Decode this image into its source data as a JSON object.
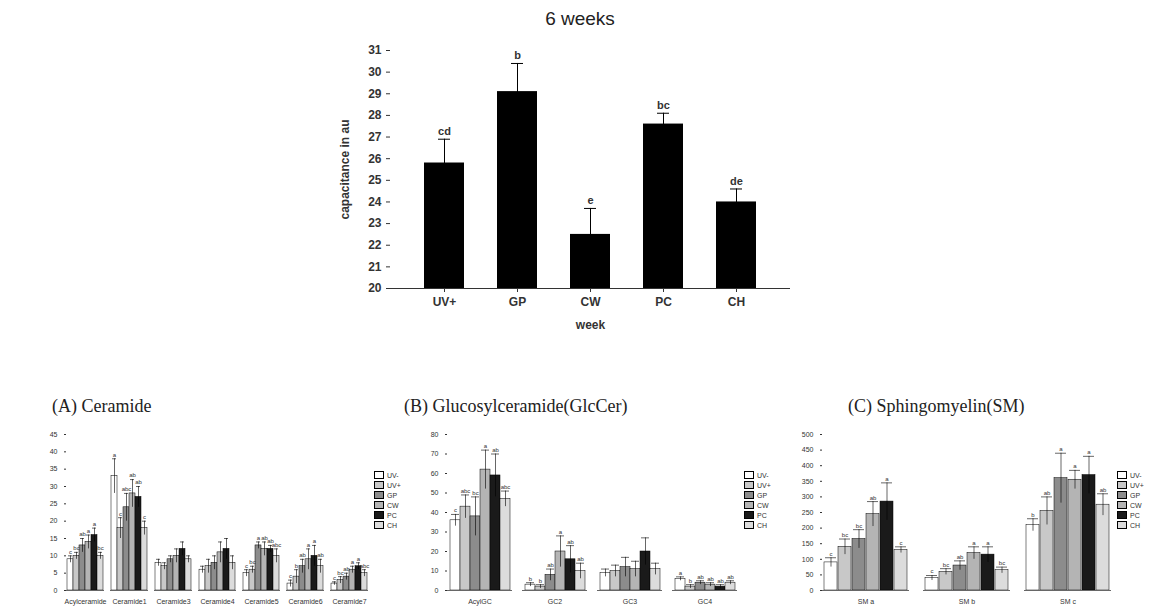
{
  "chart_data": [
    {
      "type": "bar",
      "title": "6 weeks",
      "x_label": "week",
      "y_label": "capacitance in au",
      "categories": [
        "UV+",
        "GP",
        "CW",
        "PC",
        "CH"
      ],
      "values": [
        25.8,
        29.1,
        22.5,
        27.6,
        24.0
      ],
      "errors": [
        1.1,
        1.3,
        1.2,
        0.5,
        0.6
      ],
      "annotations": [
        "cd",
        "b",
        "e",
        "bc",
        "de"
      ],
      "color": "#000000",
      "ylim": [
        20,
        31
      ],
      "yticks": [
        20,
        21,
        22,
        23,
        24,
        25,
        26,
        27,
        28,
        29,
        30,
        31
      ],
      "grid": false
    },
    {
      "type": "bar",
      "title": "(A) Ceramide",
      "categories": [
        "Acylceramide",
        "Ceramide1",
        "Ceramide3",
        "Ceramide4",
        "Ceramide5",
        "Ceramide6",
        "Ceramide7"
      ],
      "series": [
        {
          "name": "UV-",
          "color": "#ffffff",
          "values": [
            9,
            33,
            8,
            6,
            5,
            2,
            2
          ],
          "errors": [
            1,
            5,
            1,
            1,
            1,
            1,
            0.5
          ],
          "annotations": [
            "c",
            "a",
            null,
            null,
            "c",
            "c",
            "c"
          ]
        },
        {
          "name": "UV+",
          "color": "#c8c8c8",
          "values": [
            10,
            18,
            7,
            7,
            6,
            4,
            3
          ],
          "errors": [
            1,
            3,
            1,
            2,
            1,
            2,
            1
          ],
          "annotations": [
            "bc",
            "c",
            null,
            null,
            "bc",
            "b",
            "bc"
          ]
        },
        {
          "name": "GP",
          "color": "#8c8c8c",
          "values": [
            13,
            24,
            9,
            8,
            13,
            7,
            4
          ],
          "errors": [
            2,
            4,
            1,
            2,
            1,
            2,
            1
          ],
          "annotations": [
            "ab",
            "abc",
            null,
            null,
            "a",
            "ab",
            "ab"
          ]
        },
        {
          "name": "CW",
          "color": "#b4b4b4",
          "values": [
            14,
            28,
            10,
            11,
            12,
            9,
            6
          ],
          "errors": [
            2,
            4,
            2,
            3,
            2,
            3,
            1
          ],
          "annotations": [
            "a",
            "ab",
            null,
            null,
            "ab",
            "a",
            "a"
          ]
        },
        {
          "name": "PC",
          "color": "#1a1a1a",
          "values": [
            16,
            27,
            12,
            12,
            12,
            10,
            7
          ],
          "errors": [
            2,
            3,
            2,
            3,
            1,
            3,
            1
          ],
          "annotations": [
            "a",
            "ab",
            null,
            null,
            "ab",
            "a",
            "a"
          ]
        },
        {
          "name": "CH",
          "color": "#dcdcdc",
          "values": [
            10,
            18,
            9,
            8,
            10,
            7,
            5
          ],
          "errors": [
            1,
            2,
            1,
            2,
            2,
            2,
            1
          ],
          "annotations": [
            "bc",
            "c",
            null,
            null,
            "abc",
            "ab",
            "abc"
          ]
        }
      ],
      "ylim": [
        0,
        45
      ],
      "yticks": [
        0,
        5,
        10,
        15,
        20,
        25,
        30,
        35,
        40,
        45
      ],
      "grid": false,
      "legend": "right"
    },
    {
      "type": "bar",
      "title": "(B) Glucosylceramide(GlcCer)",
      "categories": [
        "AcylGC",
        "GC2",
        "GC3",
        "GC4"
      ],
      "series": [
        {
          "name": "UV-",
          "color": "#ffffff",
          "values": [
            36,
            3,
            9,
            6
          ],
          "errors": [
            3,
            1,
            2,
            1
          ],
          "annotations": [
            "c",
            "b",
            null,
            "a"
          ]
        },
        {
          "name": "UV+",
          "color": "#c8c8c8",
          "values": [
            43,
            2,
            10,
            2
          ],
          "errors": [
            6,
            1,
            3,
            1
          ],
          "annotations": [
            "abc",
            "b",
            null,
            "b"
          ]
        },
        {
          "name": "GP",
          "color": "#8c8c8c",
          "values": [
            38,
            8,
            12,
            4
          ],
          "errors": [
            10,
            3,
            5,
            1
          ],
          "annotations": [
            "bc",
            "ab",
            null,
            "ab"
          ]
        },
        {
          "name": "CW",
          "color": "#b4b4b4",
          "values": [
            62,
            20,
            11,
            3
          ],
          "errors": [
            10,
            8,
            4,
            1
          ],
          "annotations": [
            "a",
            "a",
            null,
            "ab"
          ]
        },
        {
          "name": "PC",
          "color": "#1a1a1a",
          "values": [
            59,
            16,
            20,
            2
          ],
          "errors": [
            11,
            7,
            7,
            1
          ],
          "annotations": [
            "ab",
            "ab",
            null,
            "ab"
          ]
        },
        {
          "name": "CH",
          "color": "#dcdcdc",
          "values": [
            47,
            10,
            11,
            4
          ],
          "errors": [
            4,
            4,
            3,
            1
          ],
          "annotations": [
            "abc",
            "ab",
            null,
            "ab"
          ]
        }
      ],
      "ylim": [
        0,
        80
      ],
      "yticks": [
        0,
        10,
        20,
        30,
        40,
        50,
        60,
        70,
        80
      ],
      "grid": false,
      "legend": "right"
    },
    {
      "type": "bar",
      "title": "(C) Sphingomyelin(SM)",
      "categories": [
        "SM a",
        "SM b",
        "SM c"
      ],
      "series": [
        {
          "name": "UV-",
          "color": "#ffffff",
          "values": [
            90,
            40,
            210
          ],
          "errors": [
            15,
            8,
            20
          ],
          "annotations": [
            "c",
            "c",
            "b"
          ]
        },
        {
          "name": "UV+",
          "color": "#c8c8c8",
          "values": [
            140,
            60,
            255
          ],
          "errors": [
            25,
            10,
            45
          ],
          "annotations": [
            "bc",
            "bc",
            "ab"
          ]
        },
        {
          "name": "GP",
          "color": "#8c8c8c",
          "values": [
            165,
            80,
            360
          ],
          "errors": [
            30,
            15,
            80
          ],
          "annotations": [
            "bc",
            "ab",
            "a"
          ]
        },
        {
          "name": "CW",
          "color": "#b4b4b4",
          "values": [
            245,
            120,
            355
          ],
          "errors": [
            40,
            20,
            30
          ],
          "annotations": [
            "ab",
            "a",
            "a"
          ]
        },
        {
          "name": "PC",
          "color": "#1a1a1a",
          "values": [
            285,
            115,
            370
          ],
          "errors": [
            60,
            25,
            60
          ],
          "annotations": [
            "a",
            "a",
            "a"
          ]
        },
        {
          "name": "CH",
          "color": "#dcdcdc",
          "values": [
            130,
            65,
            275
          ],
          "errors": [
            10,
            10,
            35
          ],
          "annotations": [
            "c",
            "bc",
            "ab"
          ]
        }
      ],
      "ylim": [
        0,
        500
      ],
      "yticks": [
        0,
        50,
        100,
        150,
        200,
        250,
        300,
        350,
        400,
        450,
        500
      ],
      "grid": false,
      "legend": "right"
    }
  ]
}
